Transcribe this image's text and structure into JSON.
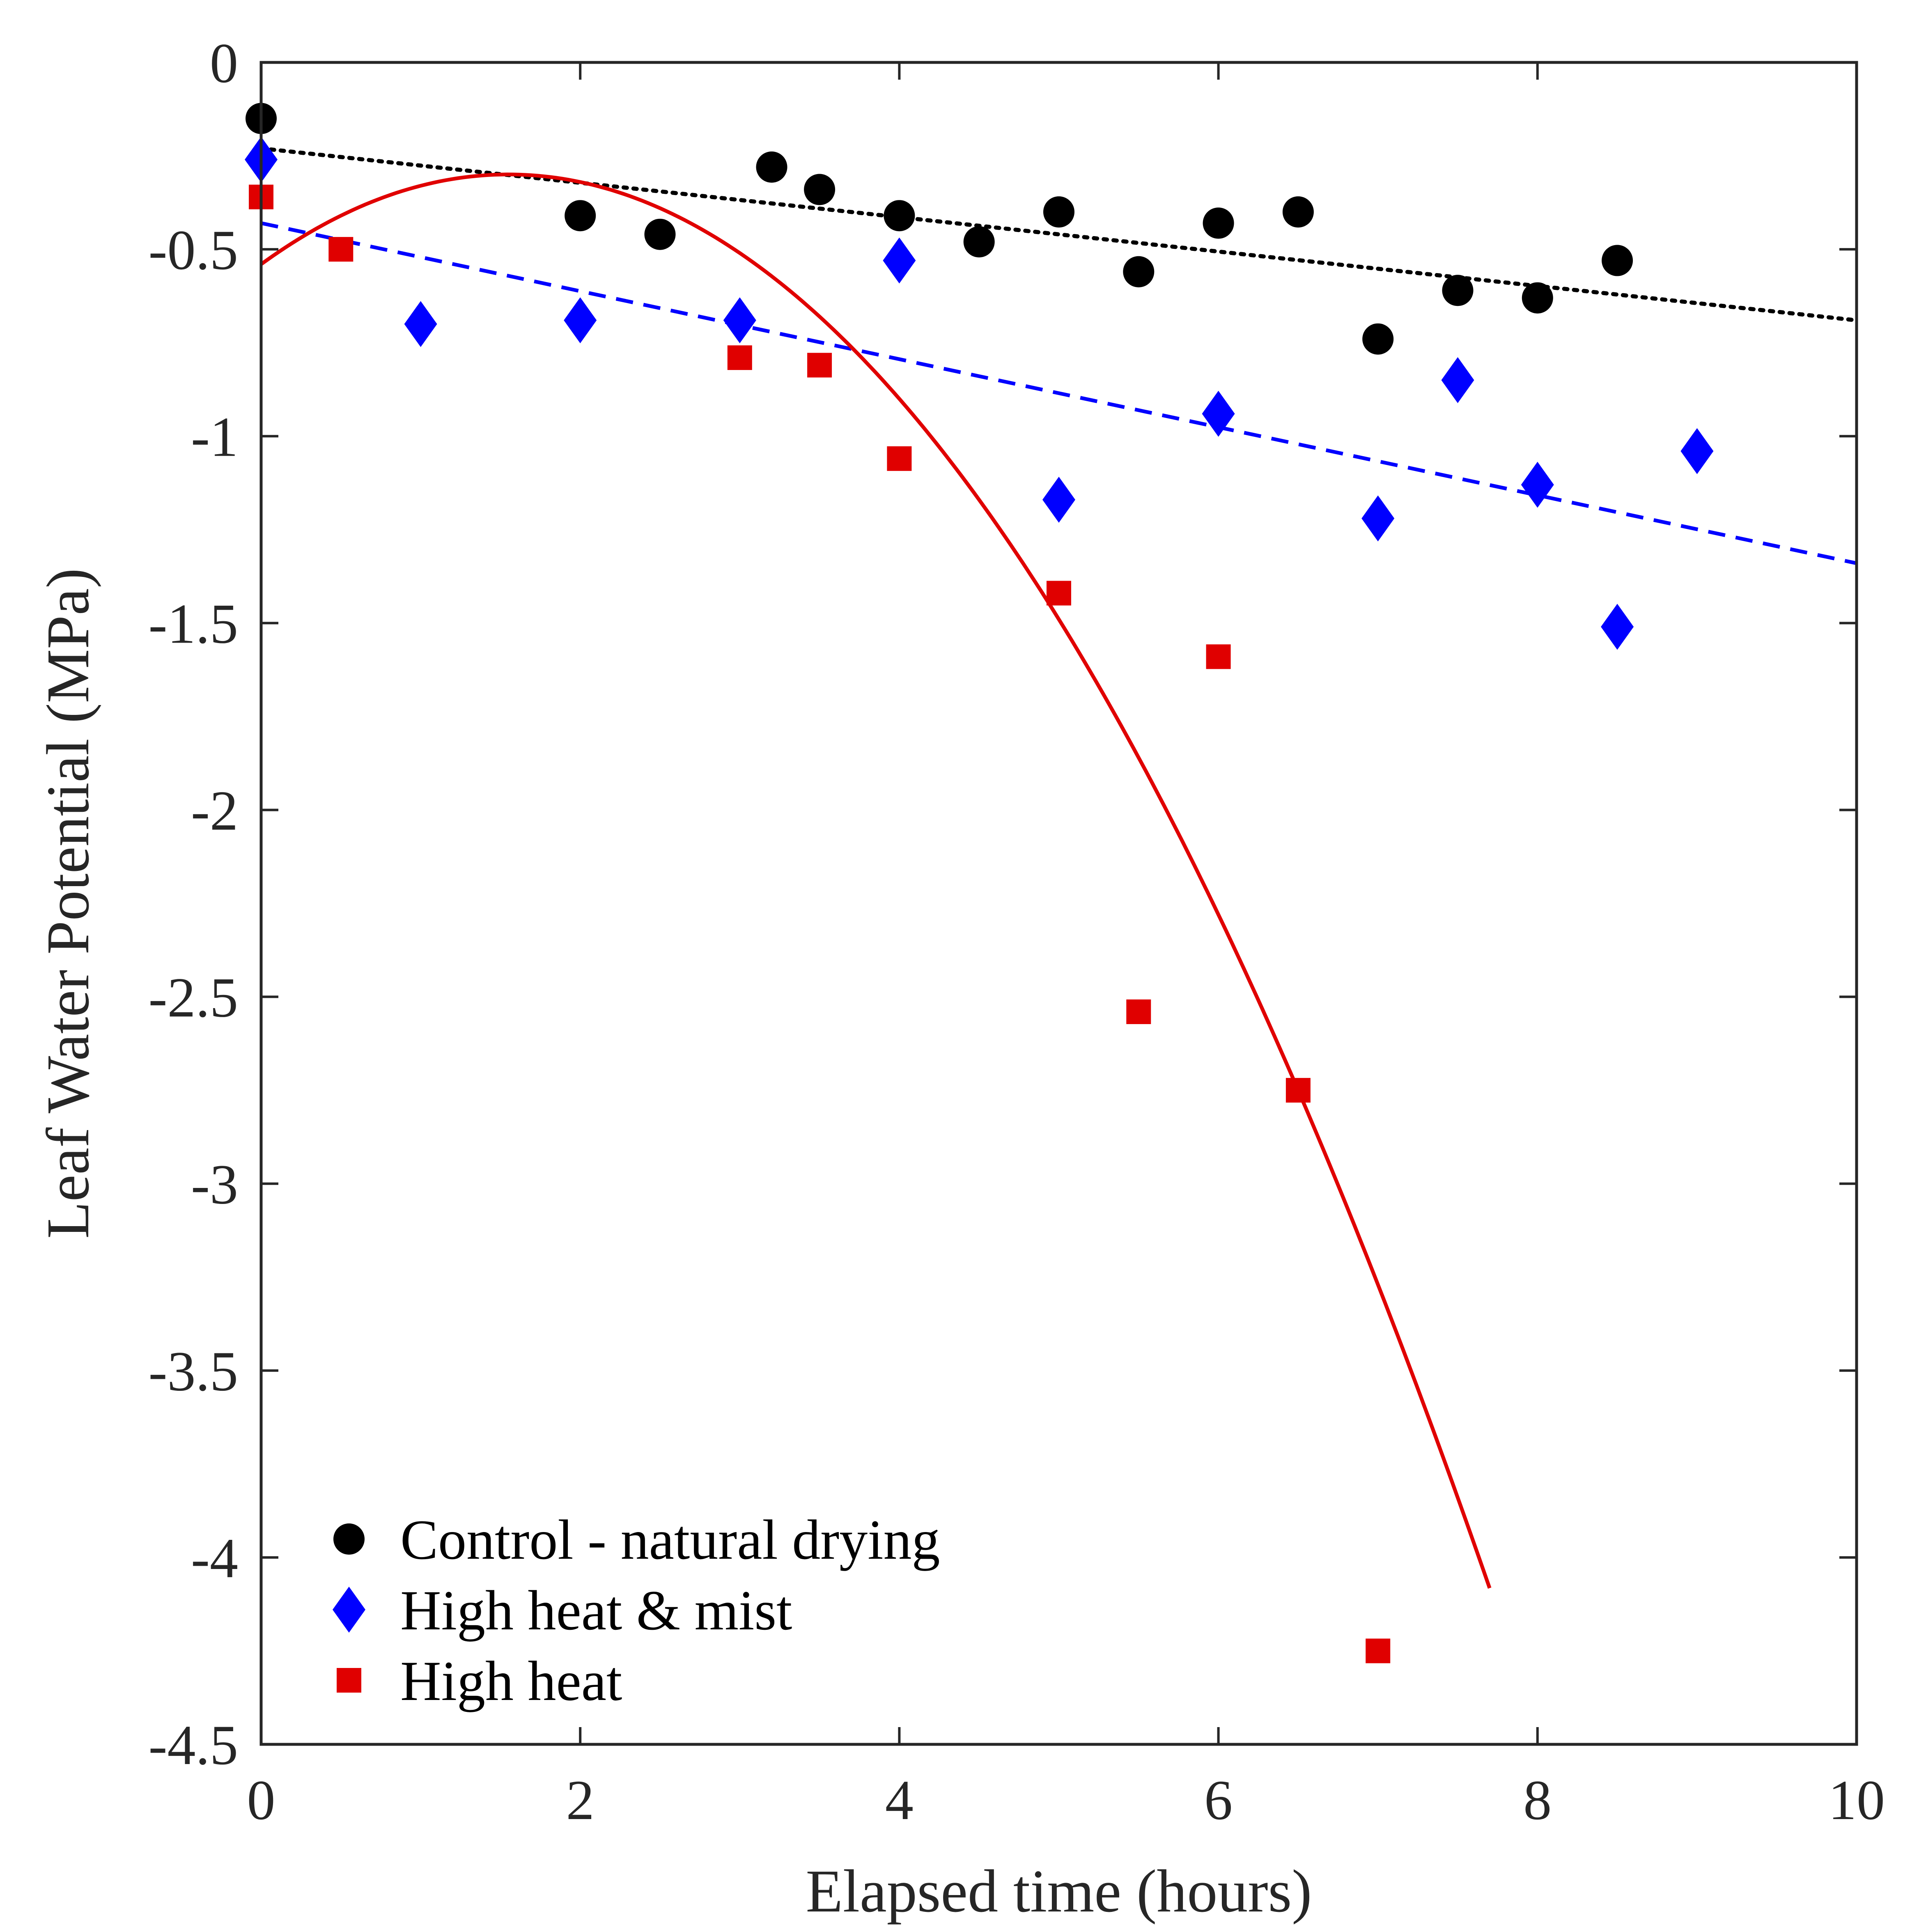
{
  "chart_data": {
    "type": "scatter",
    "xlabel": "Elapsed time (hours)",
    "ylabel": "Leaf Water Potential (MPa)",
    "xlim": [
      0,
      10
    ],
    "ylim": [
      -4.5,
      0
    ],
    "x_ticks": [
      0,
      2,
      4,
      6,
      8,
      10
    ],
    "y_ticks": [
      0,
      -0.5,
      -1,
      -1.5,
      -2,
      -2.5,
      -3,
      -3.5,
      -4,
      -4.5
    ],
    "x_tick_labels": [
      "0",
      "2",
      "4",
      "6",
      "8",
      "10"
    ],
    "y_tick_labels": [
      "0",
      "-0.5",
      "-1",
      "-1.5",
      "-2",
      "-2.5",
      "-3",
      "-3.5",
      "-4",
      "-4.5"
    ],
    "grid": false,
    "legend_position": "bottom-left",
    "series": [
      {
        "name": "Control - natural drying",
        "marker": "circle",
        "color": "#000000",
        "points": [
          [
            0,
            -0.15
          ],
          [
            2,
            -0.41
          ],
          [
            2.5,
            -0.46
          ],
          [
            3.2,
            -0.28
          ],
          [
            3.5,
            -0.34
          ],
          [
            4,
            -0.41
          ],
          [
            4.5,
            -0.48
          ],
          [
            5,
            -0.4
          ],
          [
            5.5,
            -0.56
          ],
          [
            6,
            -0.43
          ],
          [
            6.5,
            -0.4
          ],
          [
            7,
            -0.74
          ],
          [
            7.5,
            -0.61
          ],
          [
            8,
            -0.63
          ],
          [
            8.5,
            -0.53
          ]
        ],
        "fit": {
          "kind": "linear",
          "style": "dotted",
          "x_range": [
            0,
            10
          ],
          "y_values": [
            -0.23,
            -0.69
          ]
        }
      },
      {
        "name": "High heat & mist",
        "marker": "diamond",
        "color": "#0000ff",
        "points": [
          [
            0,
            -0.26
          ],
          [
            1,
            -0.7
          ],
          [
            2,
            -0.69
          ],
          [
            3,
            -0.69
          ],
          [
            4,
            -0.53
          ],
          [
            5,
            -1.17
          ],
          [
            6,
            -0.94
          ],
          [
            7,
            -1.22
          ],
          [
            7.5,
            -0.85
          ],
          [
            8,
            -1.13
          ],
          [
            8.5,
            -1.51
          ],
          [
            9,
            -1.04
          ]
        ],
        "fit": {
          "kind": "linear",
          "style": "dashed",
          "x_range": [
            0,
            10
          ],
          "y_values": [
            -0.43,
            -1.34
          ]
        }
      },
      {
        "name": "High heat",
        "marker": "square",
        "color": "#e00000",
        "points": [
          [
            0,
            -0.36
          ],
          [
            0.5,
            -0.5
          ],
          [
            3,
            -0.79
          ],
          [
            3.5,
            -0.81
          ],
          [
            4,
            -1.06
          ],
          [
            5,
            -1.42
          ],
          [
            5.5,
            -2.54
          ],
          [
            6,
            -1.59
          ],
          [
            6.5,
            -2.75
          ],
          [
            7,
            -4.25
          ]
        ],
        "fit": {
          "kind": "quadratic",
          "style": "solid",
          "x_range": [
            0,
            7.7
          ],
          "coefficients": [
            -0.54,
            0.31,
            -0.1
          ]
        }
      }
    ]
  }
}
